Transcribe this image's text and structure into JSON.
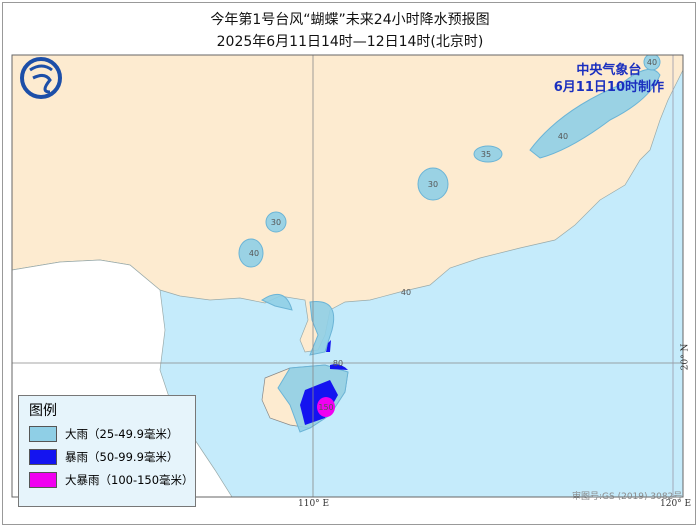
{
  "title": "今年第1号台风“蝴蝶”未来24小时降水预报图",
  "subtitle": "2025年6月11日14时—12日14时(北京时)",
  "agency": {
    "name": "中央气象台",
    "issued": "6月11日10时制作"
  },
  "legend": {
    "title": "图例",
    "items": [
      {
        "label": "大雨（25-49.9毫米）",
        "color": "#8fcfe6"
      },
      {
        "label": "暴雨（50-99.9毫米）",
        "color": "#1414f0"
      },
      {
        "label": "大暴雨（100-150毫米）",
        "color": "#f000f0"
      }
    ]
  },
  "axes": {
    "lon_110": "110° E",
    "lon_120": "120° E",
    "lat_20": "20° N"
  },
  "approval": "审图号:GS (2019) 3082号",
  "contour_labels": [
    "30",
    "40",
    "30",
    "35",
    "40",
    "40",
    "40",
    "80",
    "150"
  ],
  "colors": {
    "land": "#fdebd0",
    "sea": "#c5ebfb",
    "foreign": "#ffffff"
  }
}
